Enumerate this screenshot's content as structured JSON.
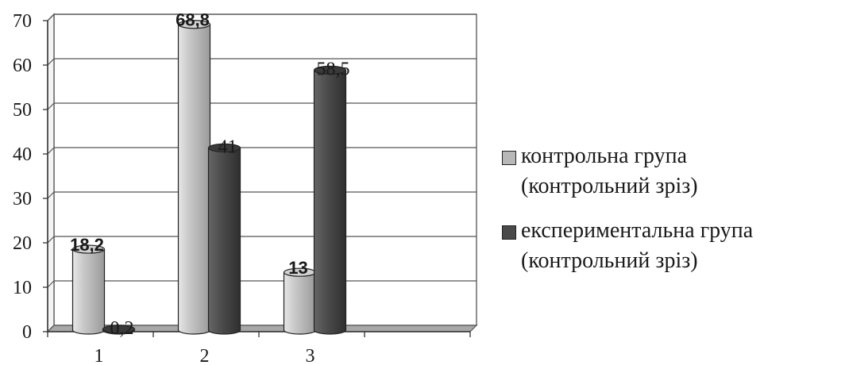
{
  "chart_data": {
    "type": "bar",
    "categories": [
      "1",
      "2",
      "3"
    ],
    "series": [
      {
        "name": "контрольна група\n(контрольний зріз)",
        "values": [
          18.2,
          68.8,
          13
        ],
        "labels": [
          "18,2",
          "68,8",
          "13"
        ],
        "color": "#b8b8b8"
      },
      {
        "name": "експериментальна група\n(контрольний зріз)",
        "values": [
          0.2,
          41,
          58.5
        ],
        "labels": [
          "0,2",
          "41",
          "58,5"
        ],
        "color": "#4a4a4a"
      }
    ],
    "ylim": [
      0,
      70
    ],
    "yticks": [
      "0",
      "10",
      "20",
      "30",
      "40",
      "50",
      "60",
      "70"
    ],
    "grid": true,
    "legend_position": "right"
  }
}
